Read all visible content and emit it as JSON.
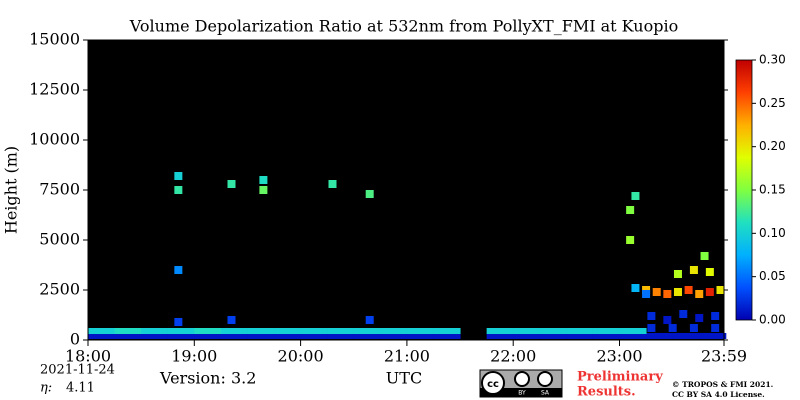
{
  "chart_data": {
    "type": "heatmap",
    "title": "Volume Depolarization Ratio at 532nm from PollyXT_FMI at Kuopio",
    "y_label": "Height (m)",
    "x_label": "UTC",
    "date": "2021-11-24",
    "eta_label": "η:",
    "eta": "4.11",
    "version": "Version: 3.2",
    "notice": [
      "Preliminary",
      "Results."
    ],
    "license_logo": [
      "cc",
      "BY",
      "SA"
    ],
    "copyright": [
      "© TROPOS & FMI 2021.",
      "CC BY SA 4.0 License."
    ],
    "xlim": [
      18,
      23.983
    ],
    "xticks": [
      {
        "value": 18,
        "label": "18:00"
      },
      {
        "value": 19,
        "label": "19:00"
      },
      {
        "value": 20,
        "label": "20:00"
      },
      {
        "value": 21,
        "label": "21:00"
      },
      {
        "value": 22,
        "label": "22:00"
      },
      {
        "value": 23,
        "label": "23:00"
      },
      {
        "value": 23.983,
        "label": "23:59"
      }
    ],
    "ylim": [
      0,
      15000
    ],
    "yticks": [
      0,
      2500,
      5000,
      7500,
      10000,
      12500,
      15000
    ],
    "clim": [
      0,
      0.3
    ],
    "cticks": [
      {
        "value": 0,
        "label": "0.00"
      },
      {
        "value": 0.05,
        "label": "0.05"
      },
      {
        "value": 0.1,
        "label": "0.10"
      },
      {
        "value": 0.15,
        "label": "0.15"
      },
      {
        "value": 0.2,
        "label": "0.20"
      },
      {
        "value": 0.25,
        "label": "0.25"
      },
      {
        "value": 0.3,
        "label": "0.30"
      }
    ],
    "colorscale": [
      "#0000b0",
      "#0050ff",
      "#00b0ff",
      "#20e0c0",
      "#80ff40",
      "#e0ff00",
      "#ffb000",
      "#ff4000",
      "#c00000"
    ],
    "layer": {
      "x": [
        18.0,
        18.25,
        18.5,
        18.75,
        19.0,
        19.25,
        19.5,
        19.75,
        20.0,
        20.25,
        20.5,
        20.75,
        21.0,
        21.25,
        21.75,
        22.0,
        22.25,
        22.5,
        22.75,
        23.0,
        23.25,
        23.5,
        23.75,
        18.0,
        18.25,
        18.5,
        18.75,
        19.0,
        19.25,
        19.5,
        19.75,
        20.0,
        20.25,
        20.5,
        20.75,
        21.0,
        21.25,
        21.75,
        22.0,
        22.25,
        22.5,
        22.75,
        23.0
      ],
      "y": [
        200,
        200,
        200,
        200,
        200,
        200,
        200,
        200,
        200,
        200,
        200,
        200,
        200,
        200,
        200,
        200,
        200,
        200,
        200,
        200,
        200,
        200,
        200,
        450,
        450,
        450,
        450,
        450,
        450,
        450,
        450,
        450,
        450,
        450,
        450,
        450,
        450,
        450,
        450,
        450,
        450,
        450,
        450
      ],
      "values": [
        0.01,
        0.01,
        0.01,
        0.01,
        0.01,
        0.01,
        0.01,
        0.01,
        0.01,
        0.01,
        0.01,
        0.01,
        0.01,
        0.01,
        0.01,
        0.01,
        0.01,
        0.01,
        0.01,
        0.01,
        0.01,
        0.01,
        0.01,
        0.1,
        0.11,
        0.1,
        0.1,
        0.11,
        0.1,
        0.1,
        0.1,
        0.1,
        0.1,
        0.1,
        0.1,
        0.1,
        0.1,
        0.1,
        0.1,
        0.1,
        0.1,
        0.1,
        0.1
      ]
    },
    "points": {
      "x": [
        18.85,
        18.85,
        18.85,
        18.85,
        19.35,
        19.35,
        19.65,
        19.65,
        20.3,
        20.65,
        20.65,
        23.1,
        23.1,
        23.15,
        23.15,
        23.25,
        23.25,
        23.35,
        23.45,
        23.55,
        23.65,
        23.75,
        23.85,
        23.95,
        23.55,
        23.7,
        23.85,
        23.8,
        23.3,
        23.45,
        23.6,
        23.75,
        23.9,
        23.3,
        23.5,
        23.7,
        23.9
      ],
      "y": [
        900,
        3500,
        7500,
        8200,
        7800,
        1000,
        7500,
        8000,
        7800,
        7300,
        1000,
        5000,
        6500,
        7200,
        2600,
        2500,
        2300,
        2400,
        2300,
        2400,
        2500,
        2300,
        2400,
        2500,
        3300,
        3500,
        3400,
        4200,
        1200,
        1000,
        1300,
        1100,
        1200,
        600,
        600,
        600,
        600
      ],
      "values": [
        0.03,
        0.06,
        0.12,
        0.1,
        0.12,
        0.03,
        0.14,
        0.11,
        0.12,
        0.13,
        0.03,
        0.16,
        0.15,
        0.12,
        0.08,
        0.22,
        0.05,
        0.24,
        0.25,
        0.2,
        0.26,
        0.23,
        0.28,
        0.2,
        0.17,
        0.2,
        0.19,
        0.15,
        0.02,
        0.01,
        0.02,
        0.01,
        0.02,
        0.02,
        0.02,
        0.02,
        0.02
      ]
    }
  }
}
